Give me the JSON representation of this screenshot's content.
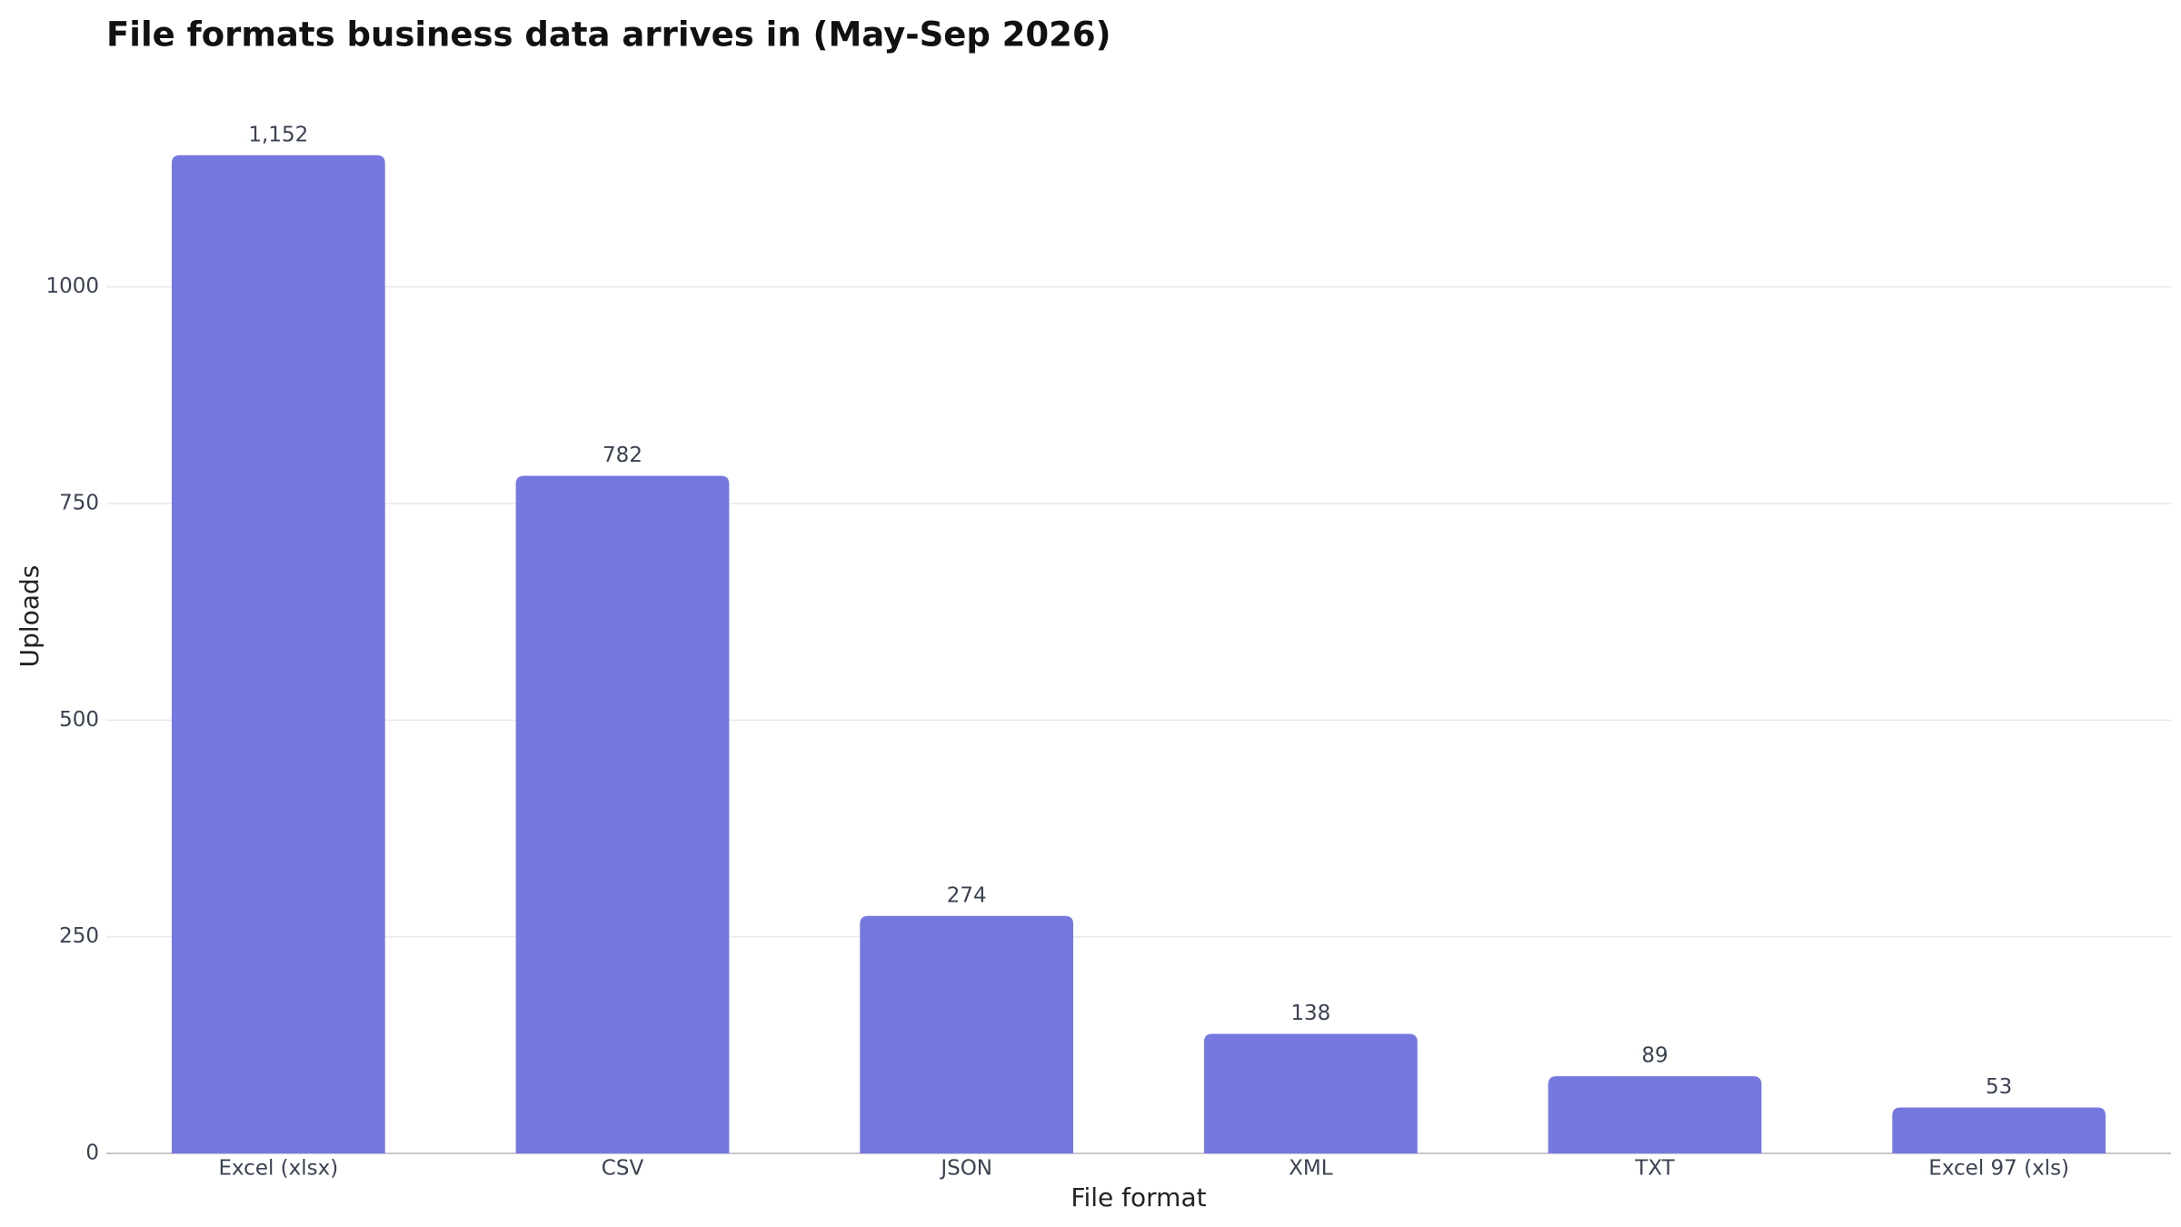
{
  "chart_data": {
    "type": "bar",
    "title": "File formats business data arrives in (May-Sep 2026)",
    "x_label": "File format",
    "y_label": "Uploads",
    "categories": [
      "Excel (xlsx)",
      "CSV",
      "JSON",
      "XML",
      "TXT",
      "Excel 97 (xls)"
    ],
    "values": [
      1152,
      782,
      274,
      138,
      89,
      53
    ],
    "value_labels": [
      "1,152",
      "782",
      "274",
      "138",
      "89",
      "53"
    ],
    "color": "#7678e0",
    "ylim": [
      0,
      1200
    ],
    "yticks": [
      0,
      250,
      500,
      750,
      1000
    ],
    "grid": true
  }
}
